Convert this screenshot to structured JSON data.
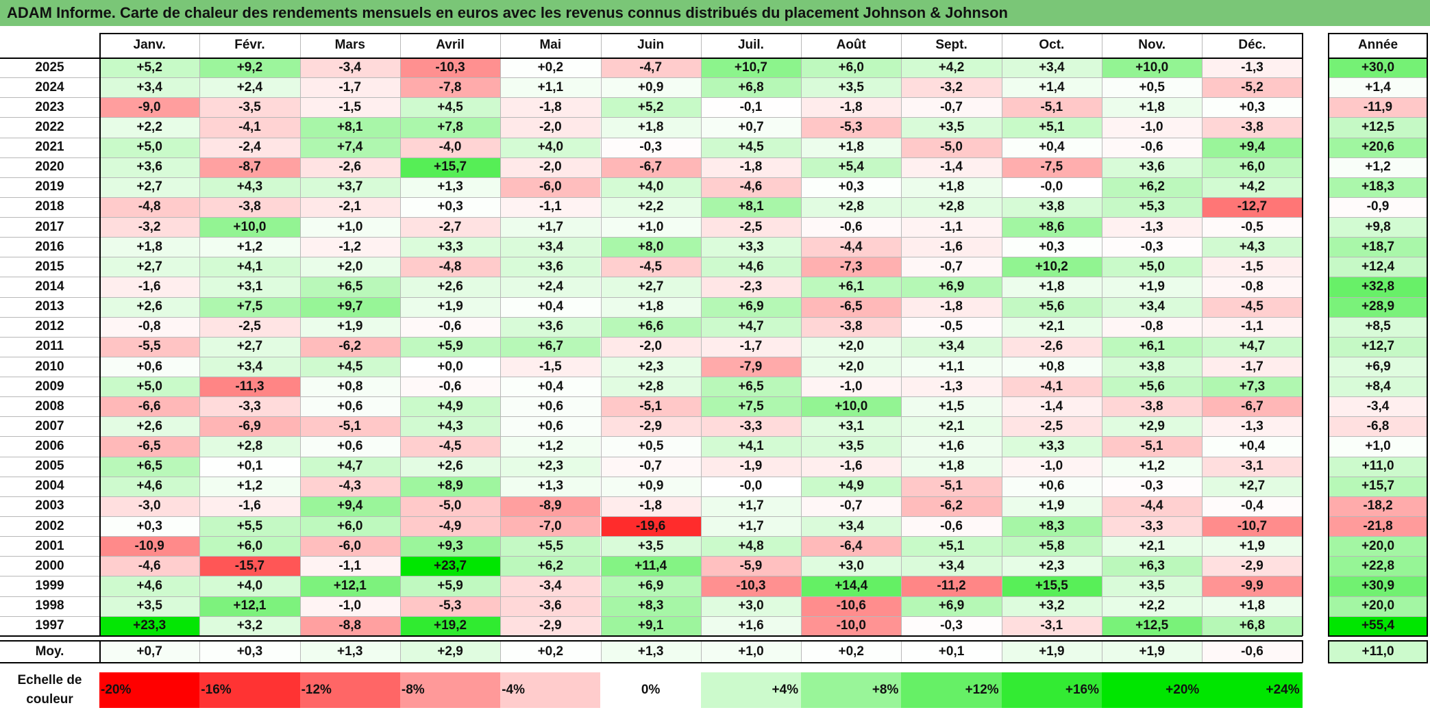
{
  "title": "ADAM Informe. Carte de chaleur des rendements mensuels en euros avec les revenus connus distribués du placement Johnson & Johnson",
  "colors": {
    "title_background": "#7ac677",
    "negative_max": "#ff0000",
    "neutral": "#ffffff",
    "positive_max": "#00e600"
  },
  "chart_data": {
    "type": "heatmap",
    "title": "ADAM Informe. Carte de chaleur des rendements mensuels en euros avec les revenus connus distribués du placement Johnson & Johnson",
    "months": [
      "Janv.",
      "Févr.",
      "Mars",
      "Avril",
      "Mai",
      "Juin",
      "Juil.",
      "Août",
      "Sept.",
      "Oct.",
      "Nov.",
      "Déc."
    ],
    "year_header": "Année",
    "rows": [
      {
        "year": "2025",
        "values": [
          "+5,2",
          "+9,2",
          "-3,4",
          "-10,3",
          "+0,2",
          "-4,7",
          "+10,7",
          "+6,0",
          "+4,2",
          "+3,4",
          "+10,0",
          "-1,3"
        ],
        "annual": "+30,0"
      },
      {
        "year": "2024",
        "values": [
          "+3,4",
          "+2,4",
          "-1,7",
          "-7,8",
          "+1,1",
          "+0,9",
          "+6,8",
          "+3,5",
          "-3,2",
          "+1,4",
          "+0,5",
          "-5,2"
        ],
        "annual": "+1,4"
      },
      {
        "year": "2023",
        "values": [
          "-9,0",
          "-3,5",
          "-1,5",
          "+4,5",
          "-1,8",
          "+5,2",
          "-0,1",
          "-1,8",
          "-0,7",
          "-5,1",
          "+1,8",
          "+0,3"
        ],
        "annual": "-11,9"
      },
      {
        "year": "2022",
        "values": [
          "+2,2",
          "-4,1",
          "+8,1",
          "+7,8",
          "-2,0",
          "+1,8",
          "+0,7",
          "-5,3",
          "+3,5",
          "+5,1",
          "-1,0",
          "-3,8"
        ],
        "annual": "+12,5"
      },
      {
        "year": "2021",
        "values": [
          "+5,0",
          "-2,4",
          "+7,4",
          "-4,0",
          "+4,0",
          "-0,3",
          "+4,5",
          "+1,8",
          "-5,0",
          "+0,4",
          "-0,6",
          "+9,4"
        ],
        "annual": "+20,6"
      },
      {
        "year": "2020",
        "values": [
          "+3,6",
          "-8,7",
          "-2,6",
          "+15,7",
          "-2,0",
          "-6,7",
          "-1,8",
          "+5,4",
          "-1,4",
          "-7,5",
          "+3,6",
          "+6,0"
        ],
        "annual": "+1,2"
      },
      {
        "year": "2019",
        "values": [
          "+2,7",
          "+4,3",
          "+3,7",
          "+1,3",
          "-6,0",
          "+4,0",
          "-4,6",
          "+0,3",
          "+1,8",
          "-0,0",
          "+6,2",
          "+4,2"
        ],
        "annual": "+18,3"
      },
      {
        "year": "2018",
        "values": [
          "-4,8",
          "-3,8",
          "-2,1",
          "+0,3",
          "-1,1",
          "+2,2",
          "+8,1",
          "+2,8",
          "+2,8",
          "+3,8",
          "+5,3",
          "-12,7"
        ],
        "annual": "-0,9"
      },
      {
        "year": "2017",
        "values": [
          "-3,2",
          "+10,0",
          "+1,0",
          "-2,7",
          "+1,7",
          "+1,0",
          "-2,5",
          "-0,6",
          "-1,1",
          "+8,6",
          "-1,3",
          "-0,5"
        ],
        "annual": "+9,8"
      },
      {
        "year": "2016",
        "values": [
          "+1,8",
          "+1,2",
          "-1,2",
          "+3,3",
          "+3,4",
          "+8,0",
          "+3,3",
          "-4,4",
          "-1,6",
          "+0,3",
          "-0,3",
          "+4,3"
        ],
        "annual": "+18,7"
      },
      {
        "year": "2015",
        "values": [
          "+2,7",
          "+4,1",
          "+2,0",
          "-4,8",
          "+3,6",
          "-4,5",
          "+4,6",
          "-7,3",
          "-0,7",
          "+10,2",
          "+5,0",
          "-1,5"
        ],
        "annual": "+12,4"
      },
      {
        "year": "2014",
        "values": [
          "-1,6",
          "+3,1",
          "+6,5",
          "+2,6",
          "+2,4",
          "+2,7",
          "-2,3",
          "+6,1",
          "+6,9",
          "+1,8",
          "+1,9",
          "-0,8"
        ],
        "annual": "+32,8"
      },
      {
        "year": "2013",
        "values": [
          "+2,6",
          "+7,5",
          "+9,7",
          "+1,9",
          "+0,4",
          "+1,8",
          "+6,9",
          "-6,5",
          "-1,8",
          "+5,6",
          "+3,4",
          "-4,5"
        ],
        "annual": "+28,9"
      },
      {
        "year": "2012",
        "values": [
          "-0,8",
          "-2,5",
          "+1,9",
          "-0,6",
          "+3,6",
          "+6,6",
          "+4,7",
          "-3,8",
          "-0,5",
          "+2,1",
          "-0,8",
          "-1,1"
        ],
        "annual": "+8,5"
      },
      {
        "year": "2011",
        "values": [
          "-5,5",
          "+2,7",
          "-6,2",
          "+5,9",
          "+6,7",
          "-2,0",
          "-1,7",
          "+2,0",
          "+3,4",
          "-2,6",
          "+6,1",
          "+4,7"
        ],
        "annual": "+12,7"
      },
      {
        "year": "2010",
        "values": [
          "+0,6",
          "+3,4",
          "+4,5",
          "+0,0",
          "-1,5",
          "+2,3",
          "-7,9",
          "+2,0",
          "+1,1",
          "+0,8",
          "+3,8",
          "-1,7"
        ],
        "annual": "+6,9"
      },
      {
        "year": "2009",
        "values": [
          "+5,0",
          "-11,3",
          "+0,8",
          "-0,6",
          "+0,4",
          "+2,8",
          "+6,5",
          "-1,0",
          "-1,3",
          "-4,1",
          "+5,6",
          "+7,3"
        ],
        "annual": "+8,4"
      },
      {
        "year": "2008",
        "values": [
          "-6,6",
          "-3,3",
          "+0,6",
          "+4,9",
          "+0,6",
          "-5,1",
          "+7,5",
          "+10,0",
          "+1,5",
          "-1,4",
          "-3,8",
          "-6,7"
        ],
        "annual": "-3,4"
      },
      {
        "year": "2007",
        "values": [
          "+2,6",
          "-6,9",
          "-5,1",
          "+4,3",
          "+0,6",
          "-2,9",
          "-3,3",
          "+3,1",
          "+2,1",
          "-2,5",
          "+2,9",
          "-1,3"
        ],
        "annual": "-6,8"
      },
      {
        "year": "2006",
        "values": [
          "-6,5",
          "+2,8",
          "+0,6",
          "-4,5",
          "+1,2",
          "+0,5",
          "+4,1",
          "+3,5",
          "+1,6",
          "+3,3",
          "-5,1",
          "+0,4"
        ],
        "annual": "+1,0"
      },
      {
        "year": "2005",
        "values": [
          "+6,5",
          "+0,1",
          "+4,7",
          "+2,6",
          "+2,3",
          "-0,7",
          "-1,9",
          "-1,6",
          "+1,8",
          "-1,0",
          "+1,2",
          "-3,1"
        ],
        "annual": "+11,0"
      },
      {
        "year": "2004",
        "values": [
          "+4,6",
          "+1,2",
          "-4,3",
          "+8,9",
          "+1,3",
          "+0,9",
          "-0,0",
          "+4,9",
          "-5,1",
          "+0,6",
          "-0,3",
          "+2,7"
        ],
        "annual": "+15,7"
      },
      {
        "year": "2003",
        "values": [
          "-3,0",
          "-1,6",
          "+9,4",
          "-5,0",
          "-8,9",
          "-1,8",
          "+1,7",
          "-0,7",
          "-6,2",
          "+1,9",
          "-4,4",
          "-0,4"
        ],
        "annual": "-18,2"
      },
      {
        "year": "2002",
        "values": [
          "+0,3",
          "+5,5",
          "+6,0",
          "-4,9",
          "-7,0",
          "-19,6",
          "+1,7",
          "+3,4",
          "-0,6",
          "+8,3",
          "-3,3",
          "-10,7"
        ],
        "annual": "-21,8"
      },
      {
        "year": "2001",
        "values": [
          "-10,9",
          "+6,0",
          "-6,0",
          "+9,3",
          "+5,5",
          "+3,5",
          "+4,8",
          "-6,4",
          "+5,1",
          "+5,8",
          "+2,1",
          "+1,9"
        ],
        "annual": "+20,0"
      },
      {
        "year": "2000",
        "values": [
          "-4,6",
          "-15,7",
          "-1,1",
          "+23,7",
          "+6,2",
          "+11,4",
          "-5,9",
          "+3,0",
          "+3,4",
          "+2,3",
          "+6,3",
          "-2,9"
        ],
        "annual": "+22,8"
      },
      {
        "year": "1999",
        "values": [
          "+4,6",
          "+4,0",
          "+12,1",
          "+5,9",
          "-3,4",
          "+6,9",
          "-10,3",
          "+14,4",
          "-11,2",
          "+15,5",
          "+3,5",
          "-9,9"
        ],
        "annual": "+30,9"
      },
      {
        "year": "1998",
        "values": [
          "+3,5",
          "+12,1",
          "-1,0",
          "-5,3",
          "-3,6",
          "+8,3",
          "+3,0",
          "-10,6",
          "+6,9",
          "+3,2",
          "+2,2",
          "+1,8"
        ],
        "annual": "+20,0"
      },
      {
        "year": "1997",
        "values": [
          "+23,3",
          "+3,2",
          "-8,8",
          "+19,2",
          "-2,9",
          "+9,1",
          "+1,6",
          "-10,0",
          "-0,3",
          "-3,1",
          "+12,5",
          "+6,8"
        ],
        "annual": "+55,4"
      }
    ],
    "average": {
      "label": "Moy.",
      "values": [
        "+0,7",
        "+0,3",
        "+1,3",
        "+2,9",
        "+0,2",
        "+1,3",
        "+1,0",
        "+0,2",
        "+0,1",
        "+1,9",
        "+1,9",
        "-0,6"
      ],
      "annual": "+11,0"
    },
    "color_scale": {
      "label": "Echelle de couleur",
      "steps": [
        "-20%",
        "-16%",
        "-12%",
        "-8%",
        "-4%",
        "0%",
        "+4%",
        "+8%",
        "+12%",
        "+16%",
        "+20%",
        "+24%"
      ],
      "values": [
        -20,
        -16,
        -12,
        -8,
        -4,
        0,
        4,
        8,
        12,
        16,
        20,
        24
      ]
    }
  }
}
